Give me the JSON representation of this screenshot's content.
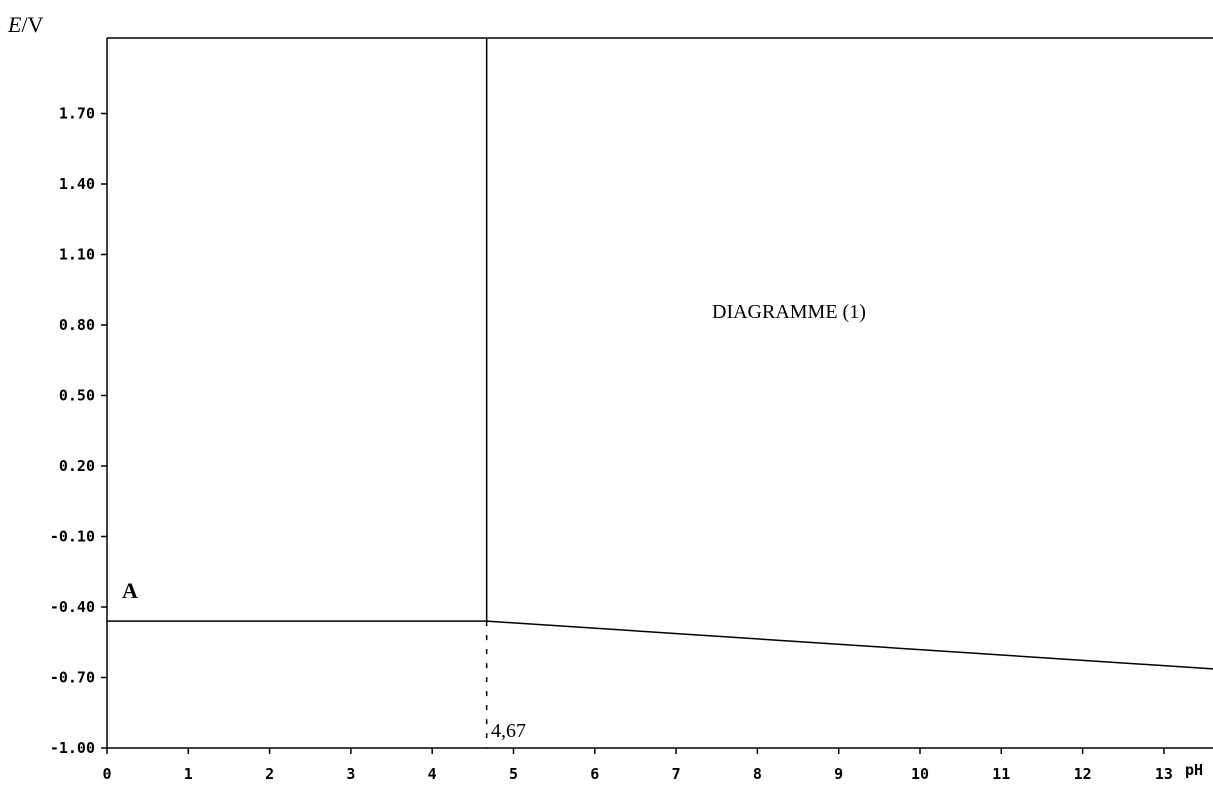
{
  "chart_data": {
    "type": "line",
    "title": "DIAGRAMME (1)",
    "ylabel_italic": "E",
    "ylabel_unit": "/V",
    "xlabel": "pH",
    "xlim": [
      0,
      13.9
    ],
    "ylim": [
      -1.0,
      1.9
    ],
    "x_ticks": [
      "0",
      "1",
      "2",
      "3",
      "4",
      "5",
      "6",
      "7",
      "8",
      "9",
      "10",
      "11",
      "12",
      "13"
    ],
    "y_ticks": [
      "-1.00",
      "-0.70",
      "-0.40",
      "-0.10",
      "0.20",
      "0.50",
      "0.80",
      "1.10",
      "1.40",
      "1.70"
    ],
    "series": [
      {
        "x": [
          0,
          4.67,
          13.9
        ],
        "y": [
          -0.46,
          -0.46,
          -0.67
        ]
      }
    ],
    "vertical_line_ph": 4.67,
    "dashed_drop_ph": 4.67,
    "annotations": {
      "point_label": "A",
      "ph_value": "4,67"
    }
  }
}
